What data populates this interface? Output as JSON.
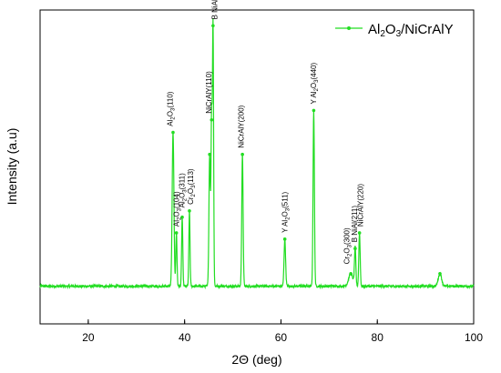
{
  "chart_data": {
    "type": "line",
    "title": "",
    "xlabel": "2Θ (deg)",
    "ylabel": "Intensity (a.u)",
    "xlim": [
      10,
      100
    ],
    "ylim": [
      0,
      1
    ],
    "x_ticks": [
      20,
      40,
      60,
      80,
      100
    ],
    "x_tick_labels": [
      "20",
      "40",
      "60",
      "80",
      "100"
    ],
    "y_ticks_shown": false,
    "grid": false,
    "legend": {
      "position": "top-right",
      "entries": [
        "Al₂O₃/NiCrAlY"
      ]
    },
    "series": [
      {
        "name": "Al₂O₃/NiCrAlY",
        "color": "#22dd22",
        "baseline": 0.12,
        "peaks": [
          {
            "x": 37.6,
            "y": 0.61,
            "w": 0.18
          },
          {
            "x": 38.3,
            "y": 0.29,
            "w": 0.12
          },
          {
            "x": 39.5,
            "y": 0.34,
            "w": 0.12
          },
          {
            "x": 41.0,
            "y": 0.36,
            "w": 0.12
          },
          {
            "x": 45.2,
            "y": 0.54,
            "w": 0.15
          },
          {
            "x": 45.6,
            "y": 0.65,
            "w": 0.12
          },
          {
            "x": 45.9,
            "y": 0.95,
            "w": 0.12
          },
          {
            "x": 52.0,
            "y": 0.54,
            "w": 0.14
          },
          {
            "x": 60.8,
            "y": 0.27,
            "w": 0.16
          },
          {
            "x": 66.8,
            "y": 0.68,
            "w": 0.14
          },
          {
            "x": 74.5,
            "y": 0.16,
            "w": 0.45
          },
          {
            "x": 75.4,
            "y": 0.24,
            "w": 0.14
          },
          {
            "x": 76.3,
            "y": 0.29,
            "w": 0.14
          },
          {
            "x": 93.0,
            "y": 0.16,
            "w": 0.35
          }
        ]
      }
    ],
    "annotations": [
      {
        "x": 37.5,
        "y": 0.63,
        "parts": [
          [
            "Al",
            "n"
          ],
          [
            "2",
            "sub"
          ],
          [
            "O",
            "n"
          ],
          [
            "3",
            "sub"
          ],
          [
            "(110)",
            "n"
          ]
        ]
      },
      {
        "x": 38.8,
        "y": 0.31,
        "parts": [
          [
            "Al",
            "n"
          ],
          [
            "2",
            "sub"
          ],
          [
            "O",
            "n"
          ],
          [
            "3",
            "sub"
          ],
          [
            "(104)",
            "n"
          ]
        ]
      },
      {
        "x": 40.0,
        "y": 0.37,
        "parts": [
          [
            "Al",
            "n"
          ],
          [
            "2",
            "sub"
          ],
          [
            "O",
            "n"
          ],
          [
            "3",
            "sub"
          ],
          [
            "(311)",
            "n"
          ]
        ]
      },
      {
        "x": 41.8,
        "y": 0.38,
        "parts": [
          [
            "Cr",
            "n"
          ],
          [
            "2",
            "sub"
          ],
          [
            "O",
            "n"
          ],
          [
            "3",
            "sub"
          ],
          [
            "(113)",
            "n"
          ]
        ]
      },
      {
        "x": 45.5,
        "y": 0.67,
        "parts": [
          [
            "NiCrAlY(110)",
            "n"
          ]
        ]
      },
      {
        "x": 46.8,
        "y": 0.97,
        "parts": [
          [
            "B NiAl(110)",
            "n"
          ]
        ]
      },
      {
        "x": 52.3,
        "y": 0.56,
        "parts": [
          [
            "NiCrAlY(200)",
            "n"
          ]
        ]
      },
      {
        "x": 61.3,
        "y": 0.29,
        "parts": [
          [
            "Y Al",
            "n"
          ],
          [
            "2",
            "sub"
          ],
          [
            "O",
            "n"
          ],
          [
            "3",
            "sub"
          ],
          [
            "(511)",
            "n"
          ]
        ]
      },
      {
        "x": 67.3,
        "y": 0.7,
        "parts": [
          [
            "Y Al",
            "n"
          ],
          [
            "2",
            "sub"
          ],
          [
            "O",
            "n"
          ],
          [
            "3",
            "sub"
          ],
          [
            "(440)",
            "n"
          ]
        ]
      },
      {
        "x": 74.2,
        "y": 0.19,
        "parts": [
          [
            "Cr",
            "n"
          ],
          [
            "2",
            "sub"
          ],
          [
            "O",
            "n"
          ],
          [
            "3",
            "sub"
          ],
          [
            "(300)",
            "n"
          ]
        ]
      },
      {
        "x": 75.8,
        "y": 0.26,
        "parts": [
          [
            "B NiAl(211)",
            "n"
          ]
        ]
      },
      {
        "x": 77.0,
        "y": 0.31,
        "parts": [
          [
            "NiCrAlY(220)",
            "n"
          ]
        ]
      }
    ]
  }
}
